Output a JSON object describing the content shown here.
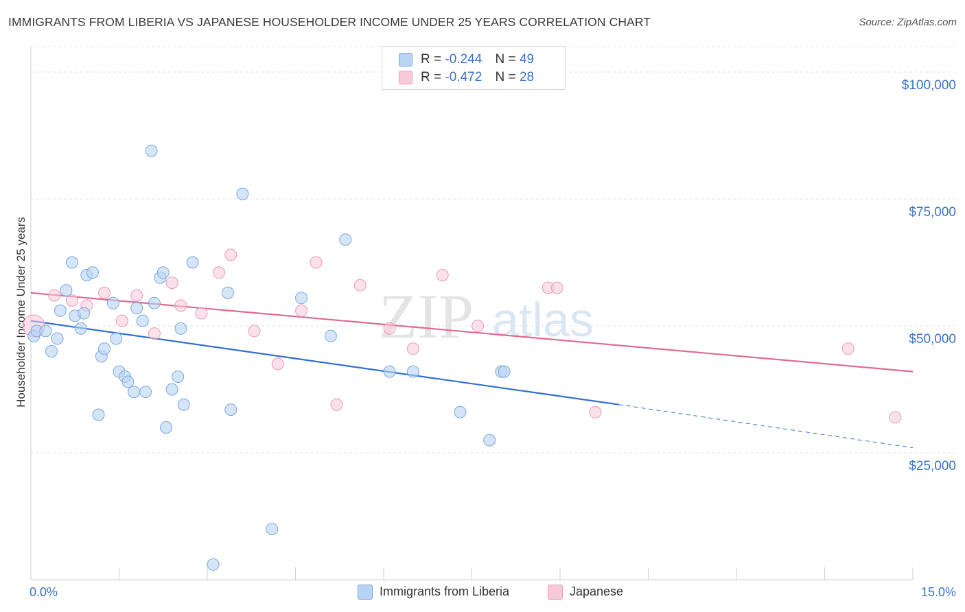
{
  "header": {
    "title": "IMMIGRANTS FROM LIBERIA VS JAPANESE HOUSEHOLDER INCOME UNDER 25 YEARS CORRELATION CHART",
    "source": "Source: ZipAtlas.com"
  },
  "watermark": {
    "zip": "ZIP",
    "atlas": "atlas"
  },
  "legend": {
    "rows": [
      {
        "r_label": "R =",
        "r_value": "-0.244",
        "n_label": "N =",
        "n_value": "49"
      },
      {
        "r_label": "R =",
        "r_value": "-0.472",
        "n_label": "N =",
        "n_value": "28"
      }
    ]
  },
  "colors": {
    "liberia_fill": "#b9d3f4",
    "liberia_stroke": "#7aa6de",
    "liberia_line": "#2f6fd0",
    "japanese_fill": "#f8c9d8",
    "japanese_stroke": "#e99bb4",
    "japanese_line": "#e06a92",
    "tick_text": "#3a73c4",
    "grid": "#e3e3e3"
  },
  "chart_data": {
    "type": "scatter",
    "title": "IMMIGRANTS FROM LIBERIA VS JAPANESE HOUSEHOLDER INCOME UNDER 25 YEARS CORRELATION CHART",
    "xlabel": "",
    "ylabel": "Householder Income Under 25 years",
    "xlim": [
      0,
      15
    ],
    "ylim": [
      0,
      105000
    ],
    "x_tick_labels": [
      "0.0%",
      "15.0%"
    ],
    "y_ticks": [
      25000,
      50000,
      75000,
      100000
    ],
    "y_tick_labels": [
      "$25,000",
      "$50,000",
      "$75,000",
      "$100,000"
    ],
    "grid": "horizontal dashed",
    "legend_position": "top-center",
    "series": [
      {
        "name": "Immigrants from Liberia",
        "points": [
          [
            0.05,
            48000
          ],
          [
            0.1,
            49000
          ],
          [
            0.25,
            49000
          ],
          [
            0.35,
            45000
          ],
          [
            0.45,
            47500
          ],
          [
            0.5,
            53000
          ],
          [
            0.6,
            57000
          ],
          [
            0.7,
            62500
          ],
          [
            0.75,
            52000
          ],
          [
            0.85,
            49500
          ],
          [
            0.9,
            52500
          ],
          [
            0.95,
            60000
          ],
          [
            1.05,
            60500
          ],
          [
            1.15,
            32500
          ],
          [
            1.2,
            44000
          ],
          [
            1.25,
            45500
          ],
          [
            1.4,
            54500
          ],
          [
            1.45,
            47500
          ],
          [
            1.5,
            41000
          ],
          [
            1.6,
            40000
          ],
          [
            1.65,
            39000
          ],
          [
            1.75,
            37000
          ],
          [
            1.8,
            53500
          ],
          [
            1.9,
            51000
          ],
          [
            1.95,
            37000
          ],
          [
            2.05,
            84500
          ],
          [
            2.1,
            54500
          ],
          [
            2.2,
            59500
          ],
          [
            2.25,
            60500
          ],
          [
            2.3,
            30000
          ],
          [
            2.4,
            37500
          ],
          [
            2.5,
            40000
          ],
          [
            2.55,
            49500
          ],
          [
            2.6,
            34500
          ],
          [
            2.75,
            62500
          ],
          [
            3.1,
            3000
          ],
          [
            3.35,
            56500
          ],
          [
            3.4,
            33500
          ],
          [
            3.6,
            76000
          ],
          [
            4.1,
            10000
          ],
          [
            4.6,
            55500
          ],
          [
            5.1,
            48000
          ],
          [
            5.35,
            67000
          ],
          [
            6.1,
            41000
          ],
          [
            6.5,
            41000
          ],
          [
            7.3,
            33000
          ],
          [
            7.8,
            27500
          ],
          [
            8.0,
            41000
          ],
          [
            8.05,
            41000
          ]
        ],
        "trend": {
          "x": [
            0,
            10
          ],
          "y": [
            51000,
            34500
          ],
          "dashed_extension_x": [
            10,
            15
          ],
          "dashed_extension_y": [
            34500,
            26000
          ]
        }
      },
      {
        "name": "Japanese",
        "points": [
          [
            0.05,
            50000
          ],
          [
            0.4,
            56000
          ],
          [
            0.7,
            55000
          ],
          [
            0.95,
            54000
          ],
          [
            1.25,
            56500
          ],
          [
            1.55,
            51000
          ],
          [
            1.8,
            56000
          ],
          [
            2.1,
            48500
          ],
          [
            2.4,
            58500
          ],
          [
            2.55,
            54000
          ],
          [
            2.9,
            52500
          ],
          [
            3.2,
            60500
          ],
          [
            3.4,
            64000
          ],
          [
            3.8,
            49000
          ],
          [
            4.2,
            42500
          ],
          [
            4.6,
            53000
          ],
          [
            4.85,
            62500
          ],
          [
            5.2,
            34500
          ],
          [
            5.6,
            58000
          ],
          [
            6.1,
            49500
          ],
          [
            6.5,
            45500
          ],
          [
            7.0,
            60000
          ],
          [
            7.6,
            50000
          ],
          [
            8.8,
            57500
          ],
          [
            8.95,
            57500
          ],
          [
            9.6,
            33000
          ],
          [
            13.9,
            45500
          ],
          [
            14.7,
            32000
          ]
        ],
        "trend": {
          "x": [
            0,
            15
          ],
          "y": [
            56500,
            41000
          ]
        }
      }
    ]
  },
  "bottom_legend": [
    {
      "label": "Immigrants from Liberia"
    },
    {
      "label": "Japanese"
    }
  ]
}
